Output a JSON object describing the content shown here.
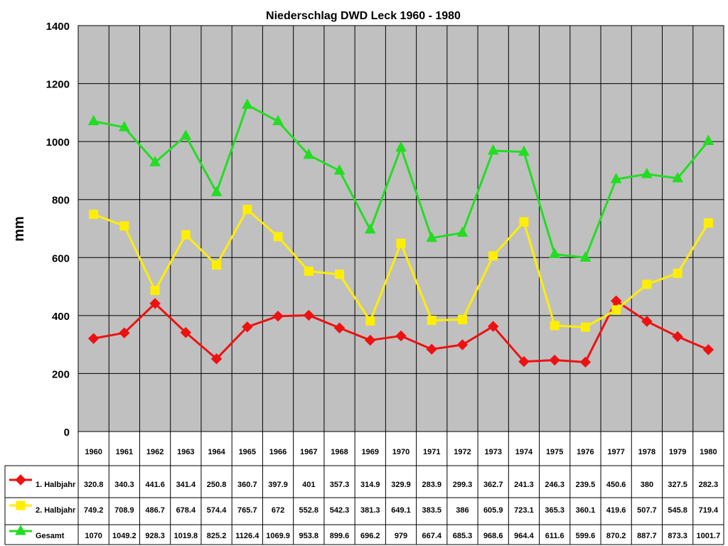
{
  "chart_data": {
    "type": "line",
    "title": "Niederschlag DWD Leck 1960 - 1980",
    "ylabel": "mm",
    "xlabel": "",
    "ylim": [
      0,
      1400
    ],
    "yticks": [
      0,
      200,
      400,
      600,
      800,
      1000,
      1200,
      1400
    ],
    "grid": true,
    "legend": "data-table-left",
    "categories": [
      "1960",
      "1961",
      "1962",
      "1963",
      "1964",
      "1965",
      "1966",
      "1967",
      "1968",
      "1969",
      "1970",
      "1971",
      "1972",
      "1973",
      "1974",
      "1975",
      "1976",
      "1977",
      "1978",
      "1979",
      "1980"
    ],
    "series": [
      {
        "name": "1. Halbjahr",
        "color": "#ee1111",
        "marker": "diamond",
        "values": [
          320.8,
          340.3,
          441.6,
          341.4,
          250.8,
          360.7,
          397.9,
          401,
          357.3,
          314.9,
          329.9,
          283.9,
          299.3,
          362.7,
          241.3,
          246.3,
          239.5,
          450.6,
          380,
          327.5,
          282.3
        ]
      },
      {
        "name": "2. Halbjahr",
        "color": "#ffee00",
        "marker": "square",
        "values": [
          749.2,
          708.9,
          486.7,
          678.4,
          574.4,
          765.7,
          672,
          552.8,
          542.3,
          381.3,
          649.1,
          383.5,
          386,
          605.9,
          723.1,
          365.3,
          360.1,
          419.6,
          507.7,
          545.8,
          719.4
        ]
      },
      {
        "name": "Gesamt",
        "color": "#22dd22",
        "marker": "triangle",
        "values": [
          1070,
          1049.2,
          928.3,
          1019.8,
          825.2,
          1126.4,
          1069.9,
          953.8,
          899.6,
          696.2,
          979,
          667.4,
          685.3,
          968.6,
          964.4,
          611.6,
          599.6,
          870.2,
          887.7,
          873.3,
          1001.7
        ]
      }
    ]
  }
}
